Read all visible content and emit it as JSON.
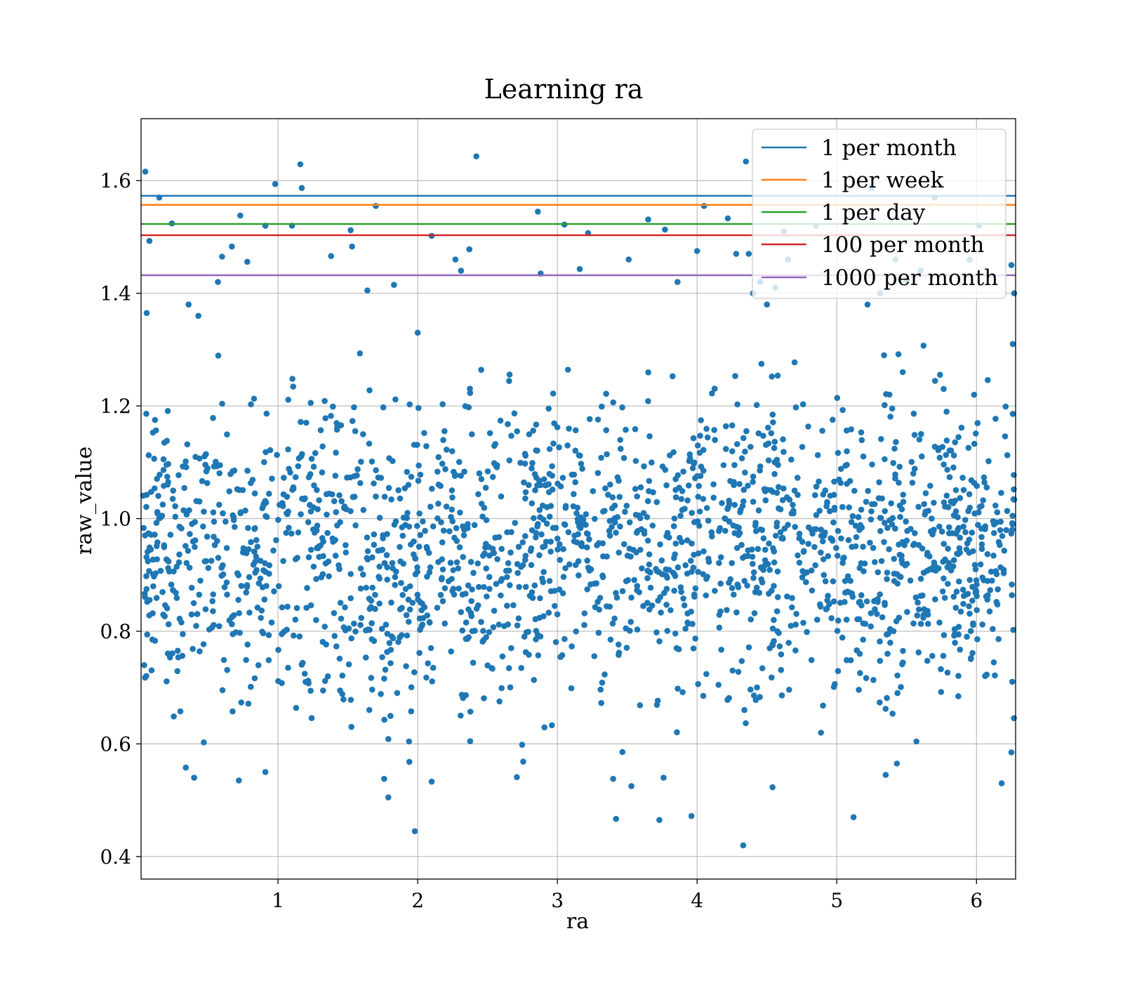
{
  "chart_data": {
    "type": "scatter",
    "title": "Learning ra",
    "xlabel": "ra",
    "ylabel": "raw_value",
    "xlim": [
      0.02,
      6.28
    ],
    "ylim": [
      0.36,
      1.71
    ],
    "xticks": [
      1,
      2,
      3,
      4,
      5,
      6
    ],
    "yticks": [
      0.4,
      0.6,
      0.8,
      1.0,
      1.2,
      1.4,
      1.6
    ],
    "ytick_labels": [
      "0.4",
      "0.6",
      "0.8",
      "1.0",
      "1.2",
      "1.4",
      "1.6"
    ],
    "grid": true,
    "legend_position": "top-right",
    "scatter_color": "#1f77b4",
    "hlines": [
      {
        "name": "1 per month",
        "y": 1.573,
        "color": "#1f77b4"
      },
      {
        "name": "1 per week",
        "y": 1.557,
        "color": "#ff7f0e"
      },
      {
        "name": "1 per day",
        "y": 1.523,
        "color": "#2ca02c"
      },
      {
        "name": "100 per month",
        "y": 1.503,
        "color": "#d62728"
      },
      {
        "name": "1000 per month",
        "y": 1.432,
        "color": "#9467bd"
      }
    ],
    "points": [
      [
        0.05,
        1.616
      ],
      [
        0.98,
        1.594
      ],
      [
        1.16,
        1.629
      ],
      [
        1.17,
        1.587
      ],
      [
        2.42,
        1.643
      ],
      [
        4.35,
        1.634
      ],
      [
        4.05,
        1.555
      ],
      [
        1.7,
        1.555
      ],
      [
        0.15,
        1.57
      ],
      [
        0.24,
        1.524
      ],
      [
        0.73,
        1.538
      ],
      [
        0.91,
        1.52
      ],
      [
        1.1,
        1.52
      ],
      [
        2.86,
        1.545
      ],
      [
        3.05,
        1.522
      ],
      [
        3.22,
        1.507
      ],
      [
        4.22,
        1.533
      ],
      [
        5.7,
        1.57
      ],
      [
        5.25,
        1.587
      ],
      [
        6.02,
        1.52
      ],
      [
        2.1,
        1.502
      ],
      [
        1.52,
        1.512
      ],
      [
        1.53,
        1.483
      ],
      [
        3.65,
        1.531
      ],
      [
        3.77,
        1.513
      ],
      [
        0.08,
        1.493
      ],
      [
        4.0,
        1.475
      ],
      [
        5.22,
        1.38
      ],
      [
        5.5,
        1.423
      ],
      [
        2.0,
        1.33
      ],
      [
        6.25,
        1.45
      ],
      [
        6.27,
        1.4
      ],
      [
        4.5,
        1.38
      ],
      [
        5.95,
        1.46
      ],
      [
        4.45,
        1.42
      ],
      [
        4.4,
        1.4
      ],
      [
        4.56,
        1.41
      ],
      [
        0.06,
        1.365
      ],
      [
        6.26,
        1.31
      ],
      [
        6.26,
        1.186
      ],
      [
        1.64,
        1.405
      ],
      [
        2.31,
        1.44
      ],
      [
        2.37,
        1.478
      ],
      [
        4.37,
        1.47
      ],
      [
        4.65,
        1.46
      ],
      [
        4.62,
        1.51
      ],
      [
        4.85,
        1.52
      ],
      [
        5.42,
        1.46
      ],
      [
        5.31,
        1.4
      ],
      [
        5.6,
        1.44
      ],
      [
        1.83,
        1.415
      ],
      [
        2.27,
        1.46
      ],
      [
        0.6,
        1.465
      ],
      [
        0.67,
        1.483
      ],
      [
        0.78,
        1.456
      ],
      [
        1.38,
        1.466
      ],
      [
        0.57,
        1.42
      ],
      [
        2.88,
        1.435
      ],
      [
        3.16,
        1.443
      ],
      [
        3.51,
        1.46
      ],
      [
        4.28,
        1.47
      ],
      [
        3.86,
        1.42
      ],
      [
        0.43,
        1.36
      ],
      [
        0.36,
        1.38
      ]
    ]
  },
  "legend": {
    "items": [
      {
        "label": "1 per month",
        "color": "#1f77b4"
      },
      {
        "label": "1 per week",
        "color": "#ff7f0e"
      },
      {
        "label": "1 per day",
        "color": "#2ca02c"
      },
      {
        "label": "100 per month",
        "color": "#d62728"
      },
      {
        "label": "1000 per month",
        "color": "#9467bd"
      }
    ]
  }
}
